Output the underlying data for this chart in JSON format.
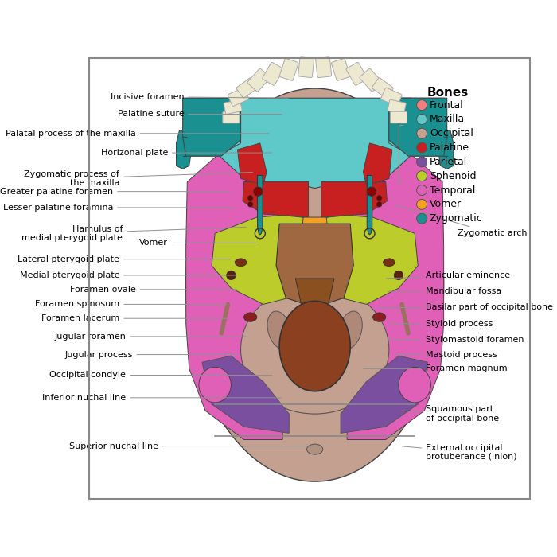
{
  "legend_title": "Bones",
  "legend_items": [
    {
      "label": "Frontal",
      "color": "#F08080"
    },
    {
      "label": "Maxilla",
      "color": "#5FC8C8"
    },
    {
      "label": "Occipital",
      "color": "#C4A090"
    },
    {
      "label": "Palatine",
      "color": "#C82020"
    },
    {
      "label": "Parietal",
      "color": "#7B4FA0"
    },
    {
      "label": "Sphenoid",
      "color": "#BCCC2A"
    },
    {
      "label": "Temporal",
      "color": "#E060B8"
    },
    {
      "label": "Vomer",
      "color": "#F5A020"
    },
    {
      "label": "Zygomatic",
      "color": "#1A9090"
    }
  ],
  "colors": {
    "frontal": "#F08080",
    "maxilla": "#5FC8C8",
    "occipital": "#C4A090",
    "palatine": "#C82020",
    "parietal": "#7B4FA0",
    "sphenoid": "#BCCC2A",
    "temporal": "#E060B8",
    "vomer": "#F5A020",
    "zygomatic": "#1A9090",
    "teeth": "#EDE8D0",
    "nasal_floor": "#A06840",
    "foramen_magnum": "#8B4020",
    "bg": "#FFFFFF",
    "border": "#888888",
    "line": "#909090"
  },
  "font_size": 8.0,
  "legend_font_size": 9.0
}
